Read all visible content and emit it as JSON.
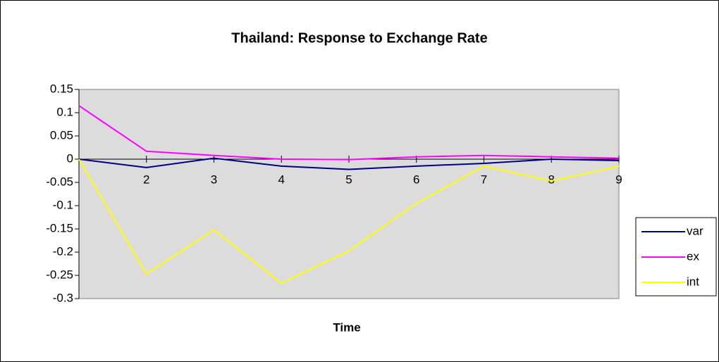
{
  "chart_data": {
    "type": "line",
    "title": "Thailand: Response to Exchange Rate",
    "x_label": "Time",
    "categories": [
      null,
      2,
      3,
      4,
      5,
      6,
      7,
      8,
      9
    ],
    "series": [
      {
        "name": "var",
        "color": "#000080",
        "values": [
          0,
          -0.018,
          0.002,
          -0.015,
          -0.022,
          -0.015,
          -0.009,
          0,
          -0.003
        ]
      },
      {
        "name": "ex",
        "color": "#ff00ff",
        "values": [
          0.115,
          0.017,
          0.008,
          0,
          -0.001,
          0.005,
          0.008,
          0.005,
          0.002
        ]
      },
      {
        "name": "int",
        "color": "#ffff00",
        "values": [
          0,
          -0.247,
          -0.152,
          -0.267,
          -0.197,
          -0.095,
          -0.015,
          -0.047,
          -0.015
        ]
      }
    ],
    "ylim": [
      -0.3,
      0.15
    ],
    "yticks": [
      0.15,
      0.1,
      0.05,
      0,
      -0.05,
      -0.1,
      -0.15,
      -0.2,
      -0.25,
      -0.3
    ],
    "grid": false,
    "legend": "right"
  }
}
